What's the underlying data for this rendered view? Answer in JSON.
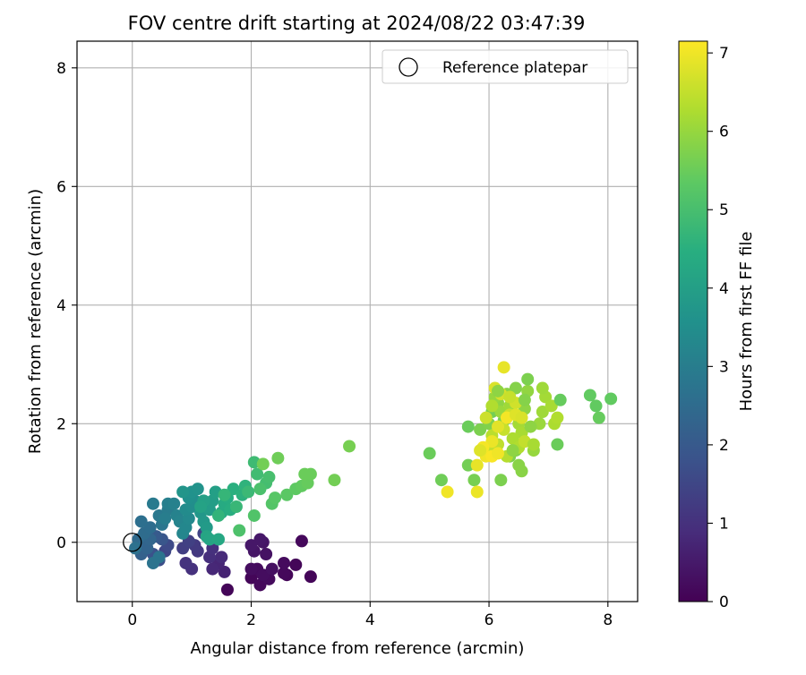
{
  "chart_data": {
    "type": "scatter",
    "title": "FOV centre drift starting at 2024/08/22 03:47:39",
    "xlabel": "Angular distance from reference (arcmin)",
    "ylabel": "Rotation from reference (arcmin)",
    "xlim": [
      -0.93,
      8.5
    ],
    "ylim": [
      -1.0,
      8.45
    ],
    "x_ticks": [
      "0",
      "2",
      "4",
      "6",
      "8"
    ],
    "y_ticks": [
      "0",
      "2",
      "4",
      "6",
      "8"
    ],
    "grid": true,
    "legend": {
      "position": "top-right",
      "entries": [
        "Reference platepar"
      ]
    },
    "colorbar": {
      "label": "Hours from first FF file",
      "range": [
        0,
        7.15
      ],
      "ticks": [
        "0",
        "1",
        "2",
        "3",
        "4",
        "5",
        "6",
        "7"
      ],
      "colormap": "viridis"
    },
    "reference_point": {
      "x": 0,
      "y": 0
    },
    "points": [
      [
        1.6,
        -0.8,
        0.1
      ],
      [
        2.0,
        -0.6,
        0.1
      ],
      [
        2.15,
        -0.72,
        0.15
      ],
      [
        2.3,
        -0.62,
        0.2
      ],
      [
        2.1,
        -0.45,
        0.2
      ],
      [
        2.0,
        -0.45,
        0.25
      ],
      [
        2.2,
        -0.55,
        0.25
      ],
      [
        2.6,
        -0.55,
        0.1
      ],
      [
        2.55,
        -0.52,
        0.15
      ],
      [
        2.75,
        -0.38,
        0.1
      ],
      [
        2.55,
        -0.35,
        0.2
      ],
      [
        2.85,
        0.02,
        0.15
      ],
      [
        3.0,
        -0.58,
        0.1
      ],
      [
        2.2,
        0.0,
        0.4
      ],
      [
        2.15,
        0.05,
        0.45
      ],
      [
        2.25,
        -0.2,
        0.35
      ],
      [
        2.35,
        -0.45,
        0.3
      ],
      [
        2.05,
        -0.15,
        0.4
      ],
      [
        2.0,
        -0.05,
        0.45
      ],
      [
        1.55,
        -0.5,
        0.7
      ],
      [
        1.45,
        -0.35,
        0.75
      ],
      [
        1.35,
        -0.45,
        0.8
      ],
      [
        1.5,
        -0.25,
        0.85
      ],
      [
        1.3,
        -0.25,
        0.95
      ],
      [
        1.35,
        -0.1,
        1.0
      ],
      [
        1.0,
        -0.45,
        1.0
      ],
      [
        0.9,
        -0.35,
        1.05
      ],
      [
        1.1,
        -0.15,
        1.15
      ],
      [
        1.05,
        -0.05,
        1.2
      ],
      [
        0.85,
        -0.1,
        1.3
      ],
      [
        0.95,
        0.02,
        1.35
      ],
      [
        1.2,
        0.15,
        1.45
      ],
      [
        0.55,
        -0.15,
        1.5
      ],
      [
        0.6,
        -0.05,
        1.6
      ],
      [
        0.45,
        -0.3,
        1.7
      ],
      [
        0.35,
        -0.2,
        1.8
      ],
      [
        0.5,
        0.05,
        1.9
      ],
      [
        0.4,
        0.1,
        2.0
      ],
      [
        0.2,
        -0.05,
        2.1
      ],
      [
        0.15,
        -0.2,
        2.2
      ],
      [
        0.25,
        -0.1,
        2.3
      ],
      [
        0.3,
        0.05,
        2.35
      ],
      [
        0.1,
        0.05,
        2.45
      ],
      [
        0.2,
        0.15,
        2.5
      ],
      [
        0.3,
        0.25,
        2.55
      ],
      [
        0.15,
        0.35,
        2.6
      ],
      [
        0.05,
        -0.1,
        2.65
      ],
      [
        0.35,
        -0.35,
        2.7
      ],
      [
        0.45,
        -0.25,
        2.75
      ],
      [
        0.5,
        0.3,
        2.8
      ],
      [
        0.45,
        0.45,
        2.85
      ],
      [
        0.35,
        0.65,
        2.9
      ],
      [
        0.6,
        0.55,
        2.95
      ],
      [
        0.55,
        0.4,
        3.0
      ],
      [
        0.6,
        0.65,
        3.05
      ],
      [
        0.7,
        0.65,
        3.1
      ],
      [
        0.75,
        0.45,
        3.15
      ],
      [
        0.8,
        0.35,
        3.2
      ],
      [
        0.85,
        0.15,
        3.25
      ],
      [
        0.9,
        0.25,
        3.3
      ],
      [
        0.95,
        0.4,
        3.35
      ],
      [
        0.9,
        0.55,
        3.4
      ],
      [
        1.0,
        0.6,
        3.45
      ],
      [
        1.05,
        0.7,
        3.5
      ],
      [
        0.95,
        0.75,
        3.55
      ],
      [
        1.0,
        0.85,
        3.6
      ],
      [
        1.1,
        0.9,
        3.65
      ],
      [
        0.85,
        0.85,
        3.7
      ],
      [
        1.15,
        0.5,
        3.75
      ],
      [
        1.2,
        0.35,
        3.8
      ],
      [
        1.25,
        0.25,
        3.85
      ],
      [
        1.3,
        0.55,
        3.9
      ],
      [
        1.35,
        0.7,
        3.95
      ],
      [
        1.4,
        0.85,
        4.0
      ],
      [
        1.2,
        0.7,
        4.05
      ],
      [
        1.15,
        0.6,
        4.1
      ],
      [
        1.25,
        0.1,
        4.15
      ],
      [
        1.3,
        0.05,
        4.2
      ],
      [
        1.45,
        0.05,
        4.25
      ],
      [
        1.5,
        0.5,
        4.3
      ],
      [
        1.55,
        0.65,
        4.35
      ],
      [
        1.6,
        0.75,
        4.4
      ],
      [
        1.65,
        0.55,
        4.45
      ],
      [
        1.7,
        0.9,
        4.5
      ],
      [
        1.85,
        0.8,
        4.55
      ],
      [
        1.9,
        0.95,
        4.6
      ],
      [
        1.45,
        0.45,
        4.65
      ],
      [
        1.55,
        0.8,
        4.7
      ],
      [
        1.75,
        0.6,
        4.75
      ],
      [
        1.95,
        0.85,
        4.8
      ],
      [
        2.05,
        1.35,
        4.85
      ],
      [
        2.1,
        1.15,
        4.9
      ],
      [
        2.25,
        1.0,
        4.95
      ],
      [
        2.3,
        1.1,
        5.0
      ],
      [
        2.15,
        0.9,
        5.05
      ],
      [
        1.8,
        0.2,
        5.1
      ],
      [
        2.05,
        0.45,
        5.15
      ],
      [
        2.35,
        0.65,
        5.2
      ],
      [
        2.4,
        0.75,
        5.25
      ],
      [
        2.6,
        0.8,
        5.3
      ],
      [
        2.75,
        0.9,
        5.35
      ],
      [
        2.85,
        0.95,
        5.4
      ],
      [
        2.95,
        1.0,
        5.45
      ],
      [
        2.9,
        1.15,
        5.5
      ],
      [
        3.0,
        1.15,
        5.5
      ],
      [
        2.45,
        1.42,
        5.55
      ],
      [
        2.2,
        1.32,
        5.6
      ],
      [
        3.4,
        1.05,
        5.6
      ],
      [
        3.65,
        1.62,
        5.65
      ],
      [
        5.0,
        1.5,
        5.5
      ],
      [
        5.2,
        1.05,
        5.55
      ],
      [
        5.65,
        1.95,
        5.5
      ],
      [
        5.65,
        1.3,
        5.6
      ],
      [
        5.75,
        1.05,
        5.65
      ],
      [
        5.85,
        1.9,
        5.7
      ],
      [
        6.0,
        2.0,
        5.75
      ],
      [
        6.05,
        2.2,
        5.6
      ],
      [
        6.25,
        2.05,
        5.65
      ],
      [
        6.2,
        1.05,
        5.7
      ],
      [
        6.35,
        1.45,
        5.75
      ],
      [
        6.45,
        1.55,
        5.8
      ],
      [
        6.55,
        1.2,
        5.85
      ],
      [
        6.6,
        2.25,
        5.9
      ],
      [
        6.65,
        2.55,
        5.95
      ],
      [
        6.75,
        1.55,
        6.0
      ],
      [
        6.85,
        2.0,
        6.05
      ],
      [
        6.9,
        2.2,
        6.1
      ],
      [
        6.95,
        2.45,
        6.15
      ],
      [
        7.05,
        2.3,
        6.2
      ],
      [
        7.1,
        2.0,
        6.25
      ],
      [
        7.15,
        2.1,
        6.3
      ],
      [
        6.65,
        2.75,
        5.7
      ],
      [
        6.45,
        2.6,
        5.8
      ],
      [
        6.3,
        2.5,
        5.85
      ],
      [
        6.15,
        2.35,
        5.9
      ],
      [
        6.1,
        2.45,
        6.0
      ],
      [
        6.2,
        2.2,
        6.05
      ],
      [
        6.35,
        2.3,
        6.1
      ],
      [
        6.5,
        2.0,
        6.15
      ],
      [
        6.55,
        1.85,
        6.2
      ],
      [
        6.4,
        1.75,
        6.25
      ],
      [
        6.5,
        1.6,
        6.3
      ],
      [
        6.3,
        1.45,
        6.35
      ],
      [
        6.05,
        1.8,
        6.4
      ],
      [
        6.15,
        1.65,
        6.45
      ],
      [
        6.0,
        1.55,
        6.5
      ],
      [
        6.25,
        1.9,
        6.55
      ],
      [
        6.35,
        2.15,
        6.6
      ],
      [
        6.45,
        2.35,
        6.65
      ],
      [
        6.2,
        2.5,
        6.7
      ],
      [
        6.1,
        2.6,
        6.75
      ],
      [
        6.15,
        2.55,
        5.9
      ],
      [
        6.25,
        2.95,
        6.9
      ],
      [
        6.15,
        1.95,
        6.85
      ],
      [
        6.05,
        1.7,
        6.95
      ],
      [
        5.95,
        1.45,
        7.0
      ],
      [
        5.9,
        1.6,
        7.05
      ],
      [
        5.85,
        1.55,
        6.8
      ],
      [
        5.8,
        1.3,
        6.9
      ],
      [
        5.8,
        0.85,
        6.95
      ],
      [
        5.3,
        0.85,
        7.0
      ],
      [
        6.05,
        1.45,
        7.1
      ],
      [
        6.15,
        1.5,
        7.0
      ],
      [
        6.3,
        2.1,
        7.05
      ],
      [
        6.45,
        2.15,
        6.8
      ],
      [
        6.55,
        2.1,
        6.75
      ],
      [
        6.6,
        1.7,
        6.5
      ],
      [
        6.75,
        1.65,
        6.2
      ],
      [
        6.9,
        2.6,
        6.1
      ],
      [
        6.7,
        1.95,
        5.9
      ],
      [
        6.6,
        2.4,
        5.8
      ],
      [
        7.15,
        1.65,
        5.5
      ],
      [
        7.2,
        2.4,
        5.45
      ],
      [
        7.7,
        2.48,
        5.4
      ],
      [
        7.8,
        2.3,
        5.4
      ],
      [
        7.85,
        2.1,
        5.45
      ],
      [
        8.05,
        2.42,
        5.4
      ],
      [
        6.5,
        1.3,
        5.85
      ],
      [
        6.4,
        1.55,
        5.9
      ],
      [
        6.05,
        2.3,
        6.3
      ],
      [
        5.95,
        2.1,
        6.6
      ],
      [
        6.35,
        2.45,
        6.55
      ]
    ]
  }
}
